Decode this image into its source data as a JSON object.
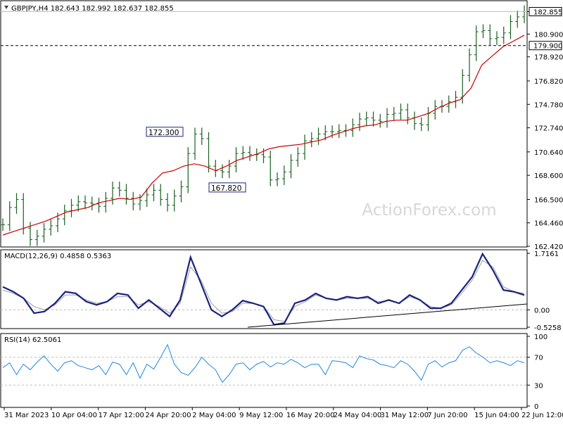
{
  "chart_data": {
    "type": "line",
    "panels": [
      {
        "id": "price",
        "header": "GBPJPY,H4  182.643 182.992 182.637 182.855",
        "ylim": [
          162.42,
          183.5
        ],
        "y_ticks": [
          "182.855",
          "180.900",
          "178.920",
          "176.820",
          "174.780",
          "172.740",
          "170.640",
          "168.600",
          "166.500",
          "164.460",
          "162.420"
        ],
        "current_price": {
          "value": 182.855,
          "label": "182.855"
        },
        "horizontal_line": {
          "value": 179.9,
          "label": "179.900",
          "style": "dashed"
        },
        "annotations": [
          {
            "label": "172.300",
            "value": 172.3
          },
          {
            "label": "167.820",
            "value": 167.82
          }
        ],
        "series": [
          {
            "kind": "ohlc-bars",
            "values": [
              164.3,
              165.8,
              166.5,
              164.0,
              163.0,
              163.3,
              163.9,
              164.2,
              164.8,
              165.5,
              166.0,
              166.3,
              166.2,
              166.1,
              165.9,
              166.6,
              167.5,
              167.3,
              166.6,
              166.1,
              166.4,
              166.9,
              167.3,
              166.5,
              166.0,
              166.8,
              167.6,
              170.5,
              172.2,
              171.8,
              169.4,
              169.0,
              168.9,
              169.4,
              170.5,
              170.6,
              170.4,
              170.4,
              170.2,
              168.2,
              168.3,
              168.9,
              169.9,
              170.5,
              171.6,
              171.8,
              172.2,
              172.4,
              172.4,
              172.5,
              172.5,
              173.0,
              173.5,
              173.6,
              173.4,
              173.3,
              173.9,
              174.0,
              174.3,
              173.6,
              173.1,
              173.0,
              174.0,
              174.6,
              174.6,
              175.0,
              175.4,
              177.3,
              179.1,
              181.1,
              181.2,
              180.5,
              180.6,
              181.0,
              182.0,
              182.4,
              182.855
            ]
          },
          {
            "kind": "moving-average",
            "color": "#cc0000",
            "values": [
              163.4,
              163.7,
              164.0,
              164.3,
              164.6,
              165.0,
              165.4,
              165.6,
              165.8,
              166.2,
              166.4,
              166.6,
              166.5,
              166.7,
              167.9,
              168.8,
              169.0,
              169.4,
              169.6,
              169.4,
              169.0,
              169.4,
              169.9,
              170.2,
              170.5,
              170.9,
              171.1,
              171.2,
              171.3,
              171.5,
              171.7,
              172.1,
              172.4,
              172.7,
              172.9,
              173.0,
              173.3,
              173.4,
              173.4,
              173.7,
              174.0,
              174.5,
              174.9,
              175.2,
              176.2,
              178.2,
              179.0,
              179.8,
              180.3,
              180.8
            ]
          }
        ]
      },
      {
        "id": "macd",
        "header": "MACD(12,26,9) 0.4858 0.5363",
        "ylim": [
          -0.5258,
          1.7161
        ],
        "y_ticks": [
          "1.7161",
          "0.00",
          "-0.5258"
        ],
        "series": [
          {
            "name": "MACD",
            "color": "#1a237e",
            "values": [
              0.7,
              0.55,
              0.35,
              -0.1,
              -0.05,
              0.2,
              0.55,
              0.5,
              0.25,
              0.15,
              0.25,
              0.5,
              0.45,
              0.05,
              0.3,
              0.05,
              -0.2,
              0.3,
              1.6,
              0.8,
              0.0,
              -0.2,
              0.0,
              0.28,
              0.2,
              0.1,
              -0.45,
              -0.4,
              0.2,
              0.3,
              0.5,
              0.35,
              0.3,
              0.4,
              0.35,
              0.4,
              0.2,
              0.3,
              0.2,
              0.45,
              0.3,
              0.05,
              0.05,
              0.2,
              0.6,
              1.0,
              1.7,
              1.2,
              0.6,
              0.55,
              0.45
            ]
          },
          {
            "name": "Signal",
            "color": "#9e9e9e",
            "values": [
              0.6,
              0.5,
              0.35,
              0.1,
              0.0,
              0.15,
              0.45,
              0.45,
              0.3,
              0.2,
              0.25,
              0.4,
              0.4,
              0.15,
              0.25,
              0.1,
              -0.1,
              0.2,
              1.3,
              0.9,
              0.2,
              -0.1,
              -0.05,
              0.2,
              0.2,
              0.1,
              -0.3,
              -0.35,
              0.1,
              0.25,
              0.45,
              0.35,
              0.3,
              0.35,
              0.35,
              0.35,
              0.25,
              0.28,
              0.2,
              0.4,
              0.3,
              0.1,
              0.05,
              0.15,
              0.5,
              0.9,
              1.5,
              1.3,
              0.7,
              0.55,
              0.5
            ]
          }
        ],
        "trendline": {
          "from_label": "9 May 12:00",
          "to_label": "22 Jun 12:00"
        }
      },
      {
        "id": "rsi",
        "header": "RSI(14) 62.5061",
        "ylim": [
          0,
          100
        ],
        "y_ticks": [
          "100",
          "70",
          "30",
          "0"
        ],
        "levels": [
          70,
          30
        ],
        "series": [
          {
            "name": "RSI",
            "color": "#1e88e5",
            "values": [
              55,
              62,
              45,
              60,
              52,
              63,
              72,
              60,
              50,
              62,
              65,
              58,
              55,
              52,
              58,
              45,
              63,
              60,
              45,
              62,
              40,
              60,
              53,
              70,
              88,
              60,
              48,
              44,
              55,
              70,
              60,
              52,
              34,
              45,
              60,
              62,
              52,
              60,
              64,
              56,
              62,
              60,
              67,
              62,
              55,
              60,
              60,
              45,
              65,
              64,
              62,
              55,
              72,
              68,
              66,
              60,
              58,
              55,
              65,
              60,
              50,
              37,
              60,
              65,
              56,
              62,
              65,
              80,
              85,
              76,
              70,
              62,
              65,
              62,
              58,
              65,
              62
            ]
          }
        ]
      }
    ],
    "x_tick_labels": [
      "31 Mar 2023",
      "10 Apr 04:00",
      "17 Apr 12:00",
      "24 Apr 20:00",
      "2 May 04:00",
      "9 May 12:00",
      "16 May 20:00",
      "24 May 04:00",
      "31 May 12:00",
      "7 Jun 20:00",
      "15 Jun 04:00",
      "22 Jun 12:00"
    ],
    "watermark": "ActionForex.com",
    "colors": {
      "bars": "#1b5e20",
      "ma": "#cc0000",
      "macd": "#1a237e",
      "signal": "#9e9e9e",
      "rsi": "#1e88e5",
      "annotation_border": "#1a237e",
      "watermark": "#d7d7d7"
    }
  }
}
